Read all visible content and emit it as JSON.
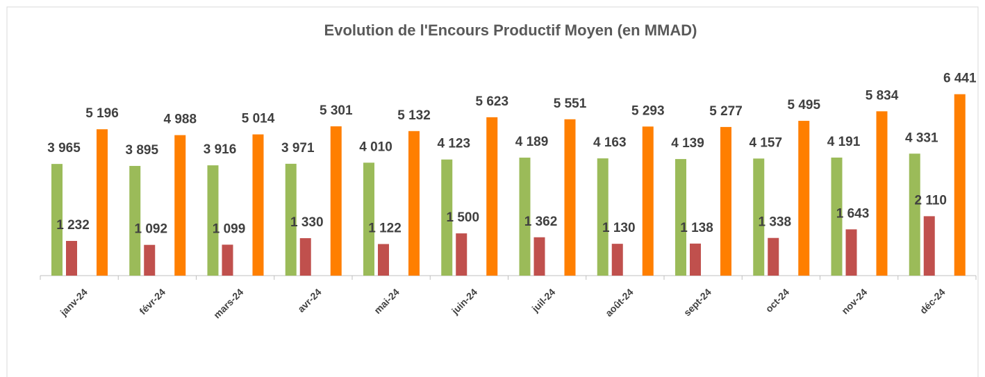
{
  "chart_data": {
    "type": "bar",
    "title": "Evolution de l'Encours Productif Moyen (en MMAD)",
    "categories": [
      "janv-24",
      "févr-24",
      "mars-24",
      "avr-24",
      "mai-24",
      "juin-24",
      "juil-24",
      "août-24",
      "sept-24",
      "oct-24",
      "nov-24",
      "déc-24"
    ],
    "ylim": [
      0,
      7000
    ],
    "series": [
      {
        "color": "#9bbb59",
        "values": [
          3965,
          3895,
          3916,
          3971,
          4010,
          4123,
          4189,
          4163,
          4139,
          4157,
          4191,
          4331
        ],
        "value_labels": [
          "3 965",
          "3 895",
          "3 916",
          "3 971",
          "4 010",
          "4 123",
          "4 189",
          "4 163",
          "4 139",
          "4 157",
          "4 191",
          "4 331"
        ]
      },
      {
        "color": "#c0504d",
        "values": [
          1232,
          1092,
          1099,
          1330,
          1122,
          1500,
          1362,
          1130,
          1138,
          1338,
          1643,
          2110
        ],
        "value_labels": [
          "1 232",
          "1 092",
          "1 099",
          "1 330",
          "1 122",
          "1 500",
          "1 362",
          "1 130",
          "1 138",
          "1 338",
          "1 643",
          "2 110"
        ]
      },
      {
        "color": "#ff7f00",
        "values": [
          5196,
          4988,
          5014,
          5301,
          5132,
          5623,
          5551,
          5293,
          5277,
          5495,
          5834,
          6441
        ],
        "value_labels": [
          "5 196",
          "4 988",
          "5 014",
          "5 301",
          "5 132",
          "5 623",
          "5 551",
          "5 293",
          "5 277",
          "5 495",
          "5 834",
          "6 441"
        ]
      }
    ]
  }
}
